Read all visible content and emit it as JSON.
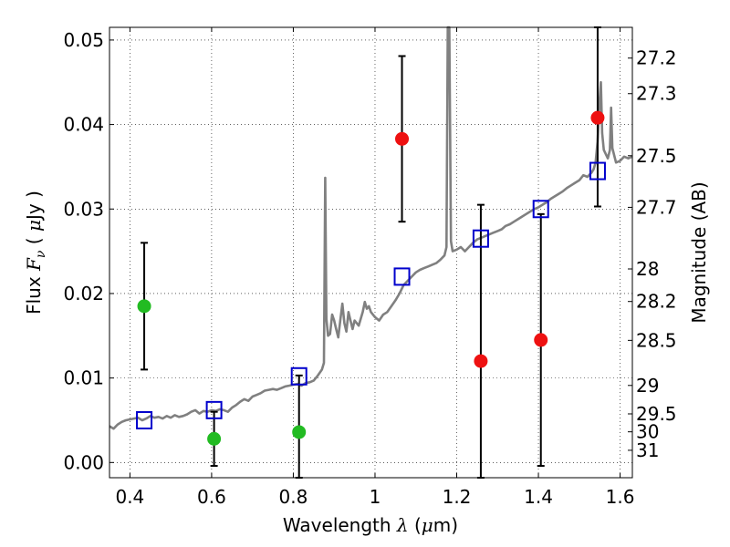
{
  "chart_data": {
    "type": "scatter",
    "xlabel": "Wavelength  λ (μm)",
    "ylabel": "Flux  F_ν  ( μJy )",
    "ylabel_right": "Magnitude (AB)",
    "xlim": [
      0.35,
      1.63
    ],
    "ylim": [
      -0.0018,
      0.0515
    ],
    "grid": true,
    "x_ticks": [
      0.4,
      0.6,
      0.8,
      1.0,
      1.2,
      1.4,
      1.6
    ],
    "x_tick_labels": [
      "0.4",
      "0.6",
      "0.8",
      "1",
      "1.2",
      "1.4",
      "1.6"
    ],
    "y_ticks": [
      0.0,
      0.01,
      0.02,
      0.03,
      0.04,
      0.05
    ],
    "y_tick_labels": [
      "0.00",
      "0.01",
      "0.02",
      "0.03",
      "0.04",
      "0.05"
    ],
    "right_ticks": [
      {
        "label": "27.2",
        "mag": 27.2
      },
      {
        "label": "27.3",
        "mag": 27.3
      },
      {
        "label": "27.5",
        "mag": 27.5
      },
      {
        "label": "27.7",
        "mag": 27.7
      },
      {
        "label": "28",
        "mag": 28.0
      },
      {
        "label": "28.2",
        "mag": 28.2
      },
      {
        "label": "28.5",
        "mag": 28.5
      },
      {
        "label": "29",
        "mag": 29.0
      },
      {
        "label": "29.5",
        "mag": 29.5
      },
      {
        "label": "30",
        "mag": 30.0
      },
      {
        "label": "31",
        "mag": 31.0
      }
    ],
    "series": [
      {
        "kind": "observed-optical",
        "color": "#22bb22",
        "points": [
          {
            "x": 0.435,
            "y": 0.0185,
            "err_lo": 0.011,
            "err_hi": 0.026
          },
          {
            "x": 0.606,
            "y": 0.0028,
            "err_lo": -0.0004,
            "err_hi": 0.006
          },
          {
            "x": 0.814,
            "y": 0.0036,
            "err_lo": -0.0018,
            "err_hi": 0.0103
          }
        ]
      },
      {
        "kind": "observed-infrared",
        "color": "#ee1111",
        "points": [
          {
            "x": 1.066,
            "y": 0.0383,
            "err_lo": 0.0285,
            "err_hi": 0.0481
          },
          {
            "x": 1.259,
            "y": 0.012,
            "err_lo": -0.0018,
            "err_hi": 0.0305
          },
          {
            "x": 1.406,
            "y": 0.0145,
            "err_lo": -0.0004,
            "err_hi": 0.0294
          },
          {
            "x": 1.545,
            "y": 0.0408,
            "err_lo": 0.0303,
            "err_hi": 0.0515
          }
        ]
      },
      {
        "kind": "model-bandpass",
        "color": "#0000cc",
        "points": [
          {
            "x": 0.435,
            "y": 0.005
          },
          {
            "x": 0.606,
            "y": 0.0062
          },
          {
            "x": 0.814,
            "y": 0.0102
          },
          {
            "x": 1.066,
            "y": 0.022
          },
          {
            "x": 1.259,
            "y": 0.0265
          },
          {
            "x": 1.406,
            "y": 0.03
          },
          {
            "x": 1.545,
            "y": 0.0345
          }
        ]
      },
      {
        "kind": "model-spectrum",
        "color": "#808080",
        "points": [
          [
            0.35,
            0.0043
          ],
          [
            0.36,
            0.004
          ],
          [
            0.37,
            0.0045
          ],
          [
            0.38,
            0.0048
          ],
          [
            0.39,
            0.005
          ],
          [
            0.4,
            0.0051
          ],
          [
            0.41,
            0.0052
          ],
          [
            0.42,
            0.0053
          ],
          [
            0.43,
            0.005
          ],
          [
            0.44,
            0.0052
          ],
          [
            0.45,
            0.0055
          ],
          [
            0.46,
            0.0053
          ],
          [
            0.47,
            0.0054
          ],
          [
            0.48,
            0.0052
          ],
          [
            0.49,
            0.0055
          ],
          [
            0.5,
            0.0053
          ],
          [
            0.51,
            0.0056
          ],
          [
            0.52,
            0.0054
          ],
          [
            0.53,
            0.0055
          ],
          [
            0.54,
            0.0057
          ],
          [
            0.55,
            0.006
          ],
          [
            0.56,
            0.0062
          ],
          [
            0.57,
            0.0058
          ],
          [
            0.58,
            0.0061
          ],
          [
            0.59,
            0.006
          ],
          [
            0.6,
            0.0062
          ],
          [
            0.61,
            0.0061
          ],
          [
            0.62,
            0.0063
          ],
          [
            0.63,
            0.0062
          ],
          [
            0.64,
            0.006
          ],
          [
            0.65,
            0.0065
          ],
          [
            0.66,
            0.0068
          ],
          [
            0.67,
            0.0072
          ],
          [
            0.68,
            0.0075
          ],
          [
            0.69,
            0.0073
          ],
          [
            0.7,
            0.0078
          ],
          [
            0.71,
            0.008
          ],
          [
            0.72,
            0.0082
          ],
          [
            0.73,
            0.0085
          ],
          [
            0.74,
            0.0086
          ],
          [
            0.75,
            0.0087
          ],
          [
            0.76,
            0.0086
          ],
          [
            0.77,
            0.0088
          ],
          [
            0.78,
            0.009
          ],
          [
            0.79,
            0.0091
          ],
          [
            0.8,
            0.0092
          ],
          [
            0.81,
            0.0093
          ],
          [
            0.82,
            0.0091
          ],
          [
            0.83,
            0.0094
          ],
          [
            0.84,
            0.0095
          ],
          [
            0.85,
            0.0097
          ],
          [
            0.86,
            0.0103
          ],
          [
            0.87,
            0.011
          ],
          [
            0.875,
            0.0118
          ],
          [
            0.878,
            0.0337
          ],
          [
            0.881,
            0.017
          ],
          [
            0.885,
            0.015
          ],
          [
            0.89,
            0.0152
          ],
          [
            0.895,
            0.0175
          ],
          [
            0.9,
            0.0168
          ],
          [
            0.905,
            0.0158
          ],
          [
            0.91,
            0.0148
          ],
          [
            0.915,
            0.0168
          ],
          [
            0.92,
            0.0188
          ],
          [
            0.925,
            0.0165
          ],
          [
            0.93,
            0.0155
          ],
          [
            0.935,
            0.0178
          ],
          [
            0.94,
            0.0168
          ],
          [
            0.945,
            0.0158
          ],
          [
            0.95,
            0.0168
          ],
          [
            0.96,
            0.0162
          ],
          [
            0.97,
            0.0178
          ],
          [
            0.975,
            0.019
          ],
          [
            0.98,
            0.0182
          ],
          [
            0.985,
            0.0185
          ],
          [
            0.99,
            0.0178
          ],
          [
            1.0,
            0.0172
          ],
          [
            1.01,
            0.0168
          ],
          [
            1.02,
            0.0175
          ],
          [
            1.03,
            0.0178
          ],
          [
            1.04,
            0.0185
          ],
          [
            1.05,
            0.0192
          ],
          [
            1.06,
            0.02
          ],
          [
            1.07,
            0.021
          ],
          [
            1.08,
            0.0215
          ],
          [
            1.09,
            0.022
          ],
          [
            1.1,
            0.0225
          ],
          [
            1.11,
            0.0228
          ],
          [
            1.12,
            0.023
          ],
          [
            1.13,
            0.0232
          ],
          [
            1.14,
            0.0234
          ],
          [
            1.15,
            0.0236
          ],
          [
            1.16,
            0.024
          ],
          [
            1.17,
            0.0245
          ],
          [
            1.175,
            0.0255
          ],
          [
            1.178,
            0.0515
          ],
          [
            1.182,
            0.0515
          ],
          [
            1.186,
            0.0262
          ],
          [
            1.19,
            0.025
          ],
          [
            1.2,
            0.0252
          ],
          [
            1.21,
            0.0255
          ],
          [
            1.22,
            0.025
          ],
          [
            1.23,
            0.0255
          ],
          [
            1.24,
            0.026
          ],
          [
            1.25,
            0.0264
          ],
          [
            1.26,
            0.0266
          ],
          [
            1.27,
            0.0268
          ],
          [
            1.28,
            0.027
          ],
          [
            1.29,
            0.0272
          ],
          [
            1.3,
            0.0274
          ],
          [
            1.31,
            0.0276
          ],
          [
            1.32,
            0.028
          ],
          [
            1.33,
            0.0282
          ],
          [
            1.34,
            0.0285
          ],
          [
            1.35,
            0.0288
          ],
          [
            1.36,
            0.0291
          ],
          [
            1.37,
            0.0294
          ],
          [
            1.38,
            0.0297
          ],
          [
            1.39,
            0.03
          ],
          [
            1.4,
            0.0302
          ],
          [
            1.41,
            0.0305
          ],
          [
            1.42,
            0.0308
          ],
          [
            1.43,
            0.0312
          ],
          [
            1.44,
            0.0315
          ],
          [
            1.45,
            0.0318
          ],
          [
            1.46,
            0.0321
          ],
          [
            1.47,
            0.0325
          ],
          [
            1.48,
            0.0328
          ],
          [
            1.49,
            0.0331
          ],
          [
            1.5,
            0.0334
          ],
          [
            1.51,
            0.034
          ],
          [
            1.52,
            0.0338
          ],
          [
            1.53,
            0.0343
          ],
          [
            1.535,
            0.0347
          ],
          [
            1.54,
            0.0355
          ],
          [
            1.545,
            0.038
          ],
          [
            1.55,
            0.043
          ],
          [
            1.553,
            0.045
          ],
          [
            1.556,
            0.039
          ],
          [
            1.56,
            0.037
          ],
          [
            1.57,
            0.036
          ],
          [
            1.575,
            0.037
          ],
          [
            1.578,
            0.042
          ],
          [
            1.581,
            0.0372
          ],
          [
            1.59,
            0.0355
          ],
          [
            1.6,
            0.0357
          ],
          [
            1.61,
            0.0362
          ],
          [
            1.62,
            0.036
          ],
          [
            1.63,
            0.0362
          ]
        ]
      }
    ]
  }
}
